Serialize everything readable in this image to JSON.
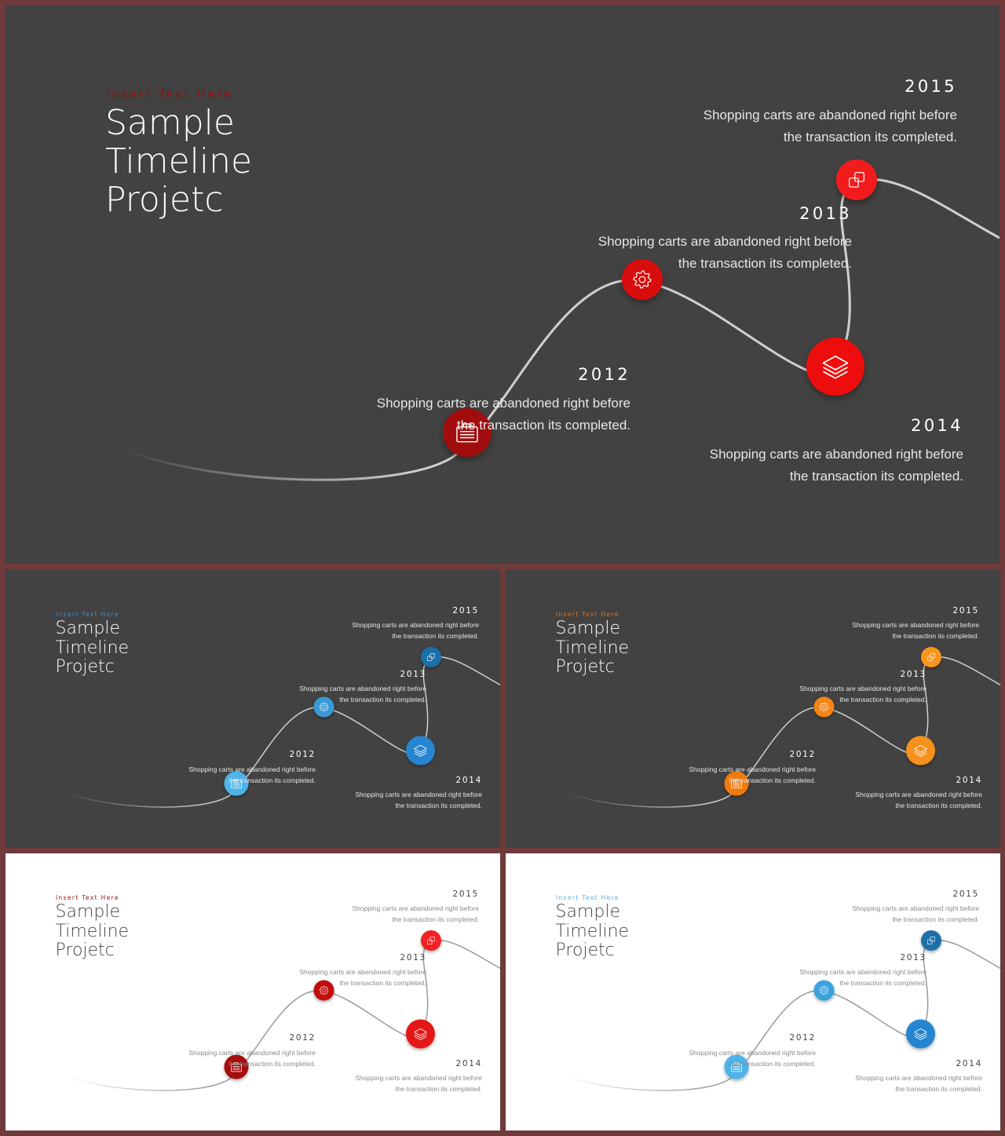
{
  "kicker": "Insert Text Here",
  "title_lines": [
    "Sample",
    "Timeline",
    "Projetc"
  ],
  "milestones": [
    {
      "year": "2012",
      "line1": "Shopping carts are abandoned right before",
      "line2": "the transaction its completed.",
      "icon": "briefcase-icon"
    },
    {
      "year": "2013",
      "line1": "Shopping carts are abandoned right before",
      "line2": "the transaction its completed.",
      "icon": "gear-icon"
    },
    {
      "year": "2014",
      "line1": "Shopping carts are abandoned right before",
      "line2": "the transaction its completed.",
      "icon": "layers-icon"
    },
    {
      "year": "2015",
      "line1": "Shopping carts are abandoned right before",
      "line2": "the transaction its completed.",
      "icon": "copy-icon"
    }
  ],
  "themes": [
    {
      "id": "main",
      "background": "#424242",
      "title_color": "#ffffff",
      "text_color": "#e6e6e6",
      "kicker_color": "#8b1111",
      "line_color": "#cfcfcf",
      "node_colors": [
        "#a10f0f",
        "#d80f0f",
        "#ee1111",
        "#f21f1f"
      ]
    },
    {
      "id": "blue",
      "background": "#424242",
      "title_color": "#ffffff",
      "text_color": "#e6e6e6",
      "kicker_color": "#3b8fd1",
      "line_color": "#cfcfcf",
      "node_colors": [
        "#4db3ea",
        "#3a9ad6",
        "#2585d0",
        "#1f6fa8"
      ]
    },
    {
      "id": "orange",
      "background": "#424242",
      "title_color": "#ffffff",
      "text_color": "#e6e6e6",
      "kicker_color": "#e8720c",
      "line_color": "#cfcfcf",
      "node_colors": [
        "#f07a10",
        "#f58514",
        "#f7901a",
        "#f8961e"
      ]
    },
    {
      "id": "light-red",
      "background": "#ffffff",
      "title_color": "#444444",
      "text_color": "#8a8a8a",
      "kicker_color": "#a01010",
      "line_color": "#9a9a9a",
      "node_colors": [
        "#a50e0e",
        "#c20f0f",
        "#e41313",
        "#f22020"
      ]
    },
    {
      "id": "light-blue",
      "background": "#ffffff",
      "title_color": "#444444",
      "text_color": "#8a8a8a",
      "kicker_color": "#4db3ea",
      "line_color": "#9a9a9a",
      "node_colors": [
        "#4db3ea",
        "#3aa2de",
        "#2585d0",
        "#1f6fa8"
      ]
    }
  ]
}
